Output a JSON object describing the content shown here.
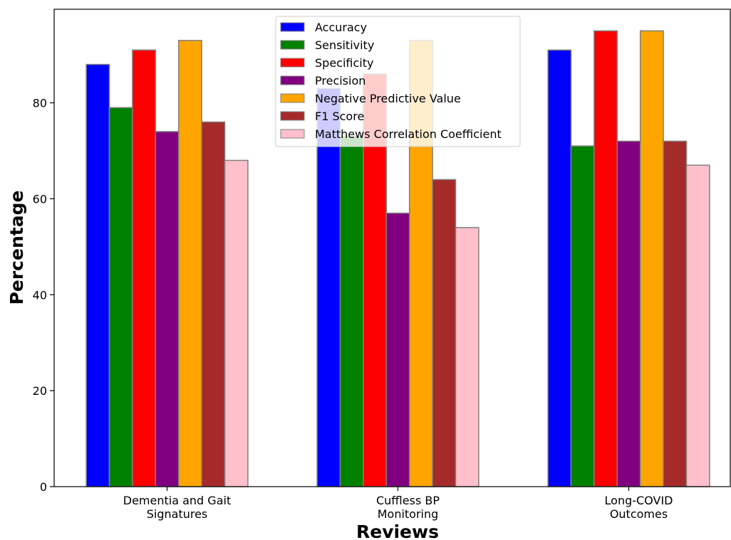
{
  "chart_data": {
    "type": "bar",
    "title": "",
    "xlabel": "Reviews",
    "ylabel": "Percentage",
    "ylim": [
      0,
      100
    ],
    "yticks": [
      0,
      20,
      40,
      60,
      80
    ],
    "grid": false,
    "legend_position": "top-center",
    "categories": [
      [
        "Dementia and Gait",
        "Signatures"
      ],
      [
        "Cuffless BP",
        "Monitoring"
      ],
      [
        "Long-COVID",
        "Outcomes"
      ]
    ],
    "series": [
      {
        "name": "Accuracy",
        "color": "#0000ff",
        "values": [
          88,
          83,
          91
        ]
      },
      {
        "name": "Sensitivity",
        "color": "#008000",
        "values": [
          79,
          73,
          71
        ]
      },
      {
        "name": "Specificity",
        "color": "#ff0000",
        "values": [
          91,
          86,
          95
        ]
      },
      {
        "name": "Precision",
        "color": "#800080",
        "values": [
          74,
          57,
          72
        ]
      },
      {
        "name": "Negative Predictive Value",
        "color": "#ffa500",
        "values": [
          93,
          93,
          95
        ]
      },
      {
        "name": "F1 Score",
        "color": "#a52a2a",
        "values": [
          76,
          64,
          72
        ]
      },
      {
        "name": "Matthews Correlation Coefficient",
        "color": "#ffc0cb",
        "values": [
          68,
          54,
          67
        ]
      }
    ]
  }
}
